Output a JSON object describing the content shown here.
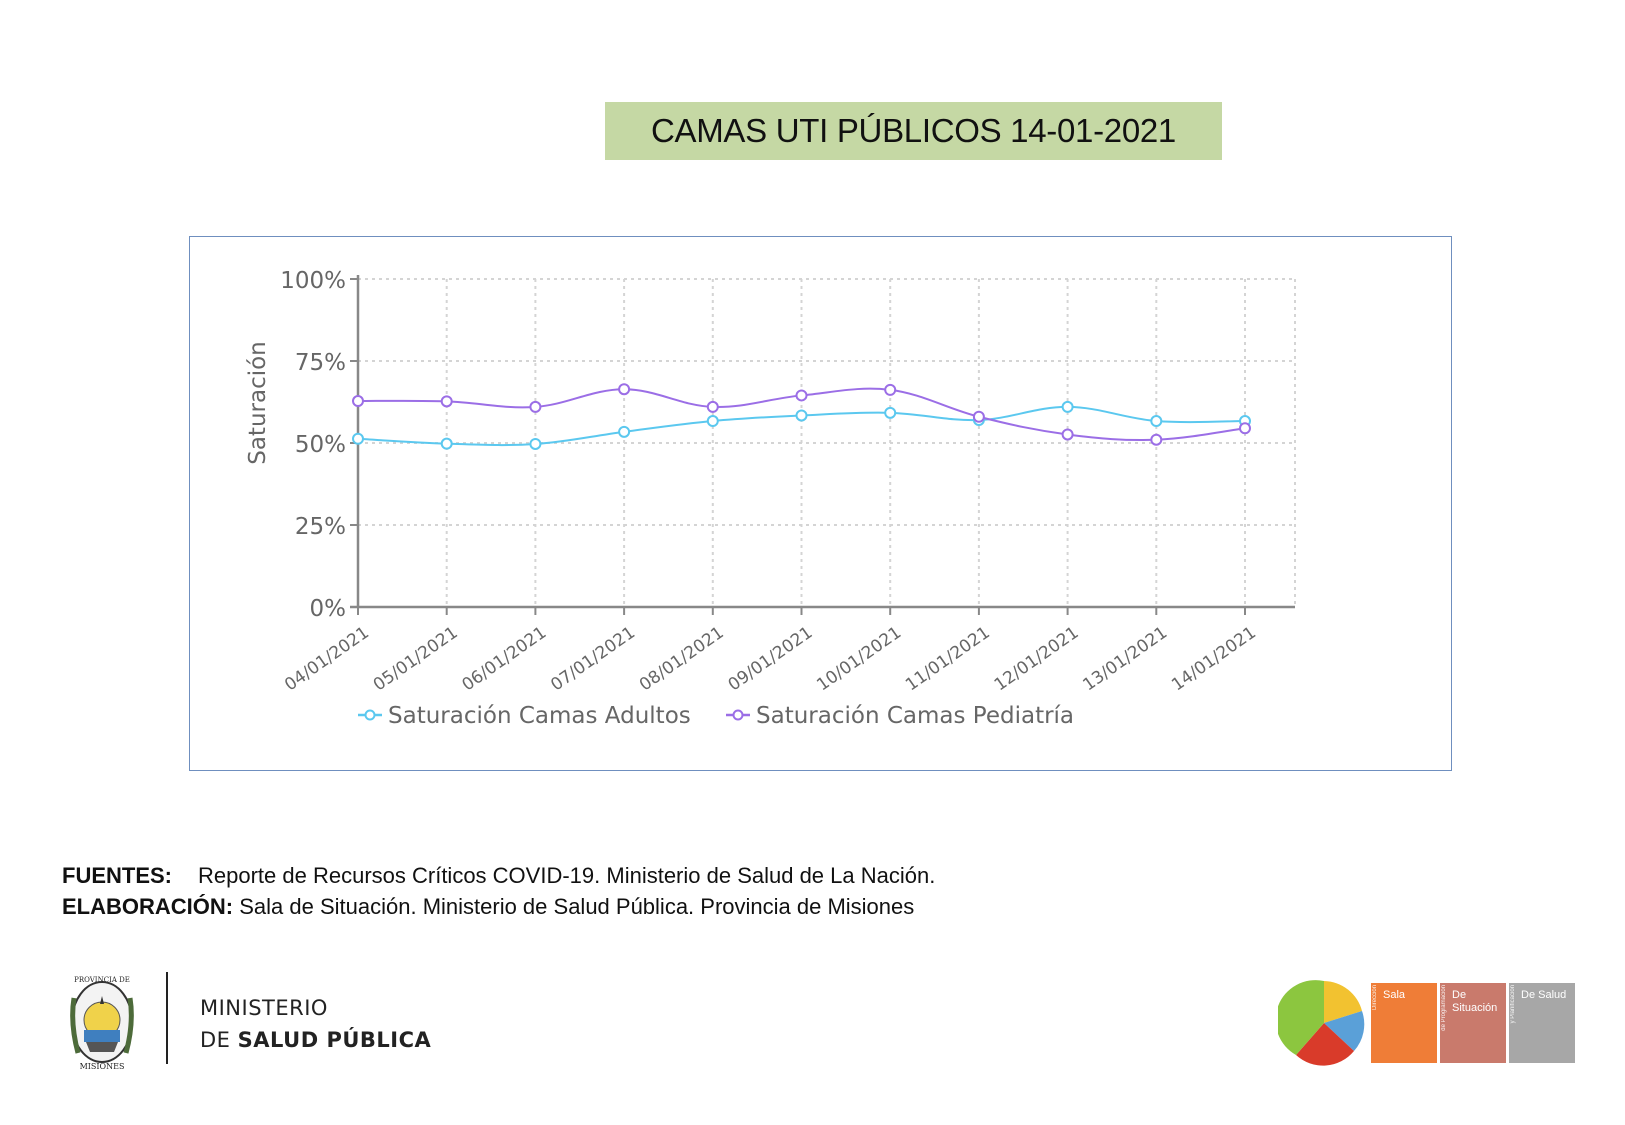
{
  "title": "CAMAS UTI PÚBLICOS 14-01-2021",
  "chart_data": {
    "type": "line",
    "title": "",
    "xlabel": "",
    "ylabel": "Saturación",
    "ylim": [
      0,
      100
    ],
    "yticks": [
      "0%",
      "25%",
      "50%",
      "75%",
      "100%"
    ],
    "ytick_values": [
      0,
      25,
      50,
      75,
      100
    ],
    "grid": true,
    "legend_position": "bottom",
    "categories": [
      "04/01/2021",
      "05/01/2021",
      "06/01/2021",
      "07/01/2021",
      "08/01/2021",
      "09/01/2021",
      "10/01/2021",
      "11/01/2021",
      "12/01/2021",
      "13/01/2021",
      "14/01/2021"
    ],
    "series": [
      {
        "name": "Saturación Camas Adultos",
        "color": "#5bc8ef",
        "values": [
          51.3,
          49.8,
          49.7,
          53.4,
          56.7,
          58.4,
          59.2,
          57.0,
          61.0,
          56.7,
          56.7
        ]
      },
      {
        "name": "Saturación Camas Pediatría",
        "color": "#9b6ee6",
        "values": [
          62.8,
          62.7,
          61.0,
          66.4,
          61.0,
          64.5,
          66.2,
          58.0,
          52.6,
          51.0,
          54.5
        ]
      }
    ]
  },
  "sources": {
    "fuentes_label": "FUENTES:",
    "fuentes_text": "Reporte de Recursos Críticos COVID-19. Ministerio de Salud de La Nación.",
    "elaboracion_label": "ELABORACIÓN:",
    "elaboracion_text": "Sala de Situación. Ministerio de Salud Pública. Provincia de Misiones"
  },
  "footer": {
    "ministry_line1": "MINISTERIO",
    "ministry_line2_prefix": "DE",
    "ministry_line2_bold": "SALUD PÚBLICA",
    "crest_top_text": "PROVINCIA DE",
    "crest_bottom_text": "MISIONES",
    "logo_boxes": [
      {
        "side": "Dirección",
        "main": "Sala",
        "color": "#ef7d37"
      },
      {
        "side": "de Programación",
        "main": "De Situación",
        "color": "#c97a6c"
      },
      {
        "side": "y Planificación",
        "main": "De Salud",
        "color": "#a7a7a7"
      }
    ]
  }
}
